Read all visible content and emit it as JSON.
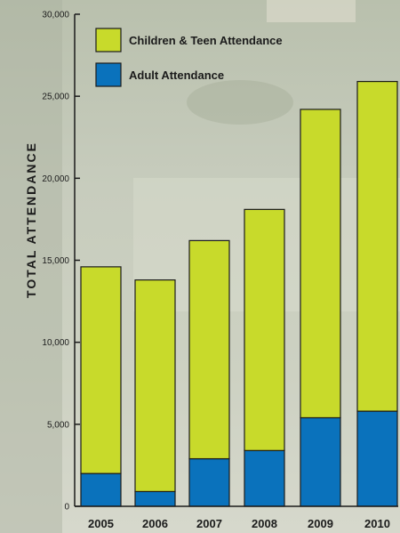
{
  "chart_data": {
    "type": "bar",
    "stacked": true,
    "title": "",
    "xlabel": "",
    "ylabel": "TOTAL ATTENDANCE",
    "categories": [
      "2005",
      "2006",
      "2007",
      "2008",
      "2009",
      "2010"
    ],
    "series": [
      {
        "name": "Adult Attendance",
        "color": "#0a72bc",
        "values": [
          2000,
          900,
          2900,
          3400,
          5400,
          5800
        ]
      },
      {
        "name": "Children & Teen Attendance",
        "color": "#c8da2b",
        "values": [
          12600,
          12900,
          13300,
          14700,
          18800,
          20100
        ]
      }
    ],
    "ylim": [
      0,
      30000
    ],
    "yticks": [
      0,
      5000,
      10000,
      15000,
      20000,
      25000,
      30000
    ],
    "ytick_labels": [
      "0",
      "5,000",
      "10,000",
      "15,000",
      "20,000",
      "25,000",
      "30,000"
    ],
    "legend_order": [
      "Children & Teen Attendance",
      "Adult Attendance"
    ],
    "legend_position": "top-left",
    "grid": false
  }
}
